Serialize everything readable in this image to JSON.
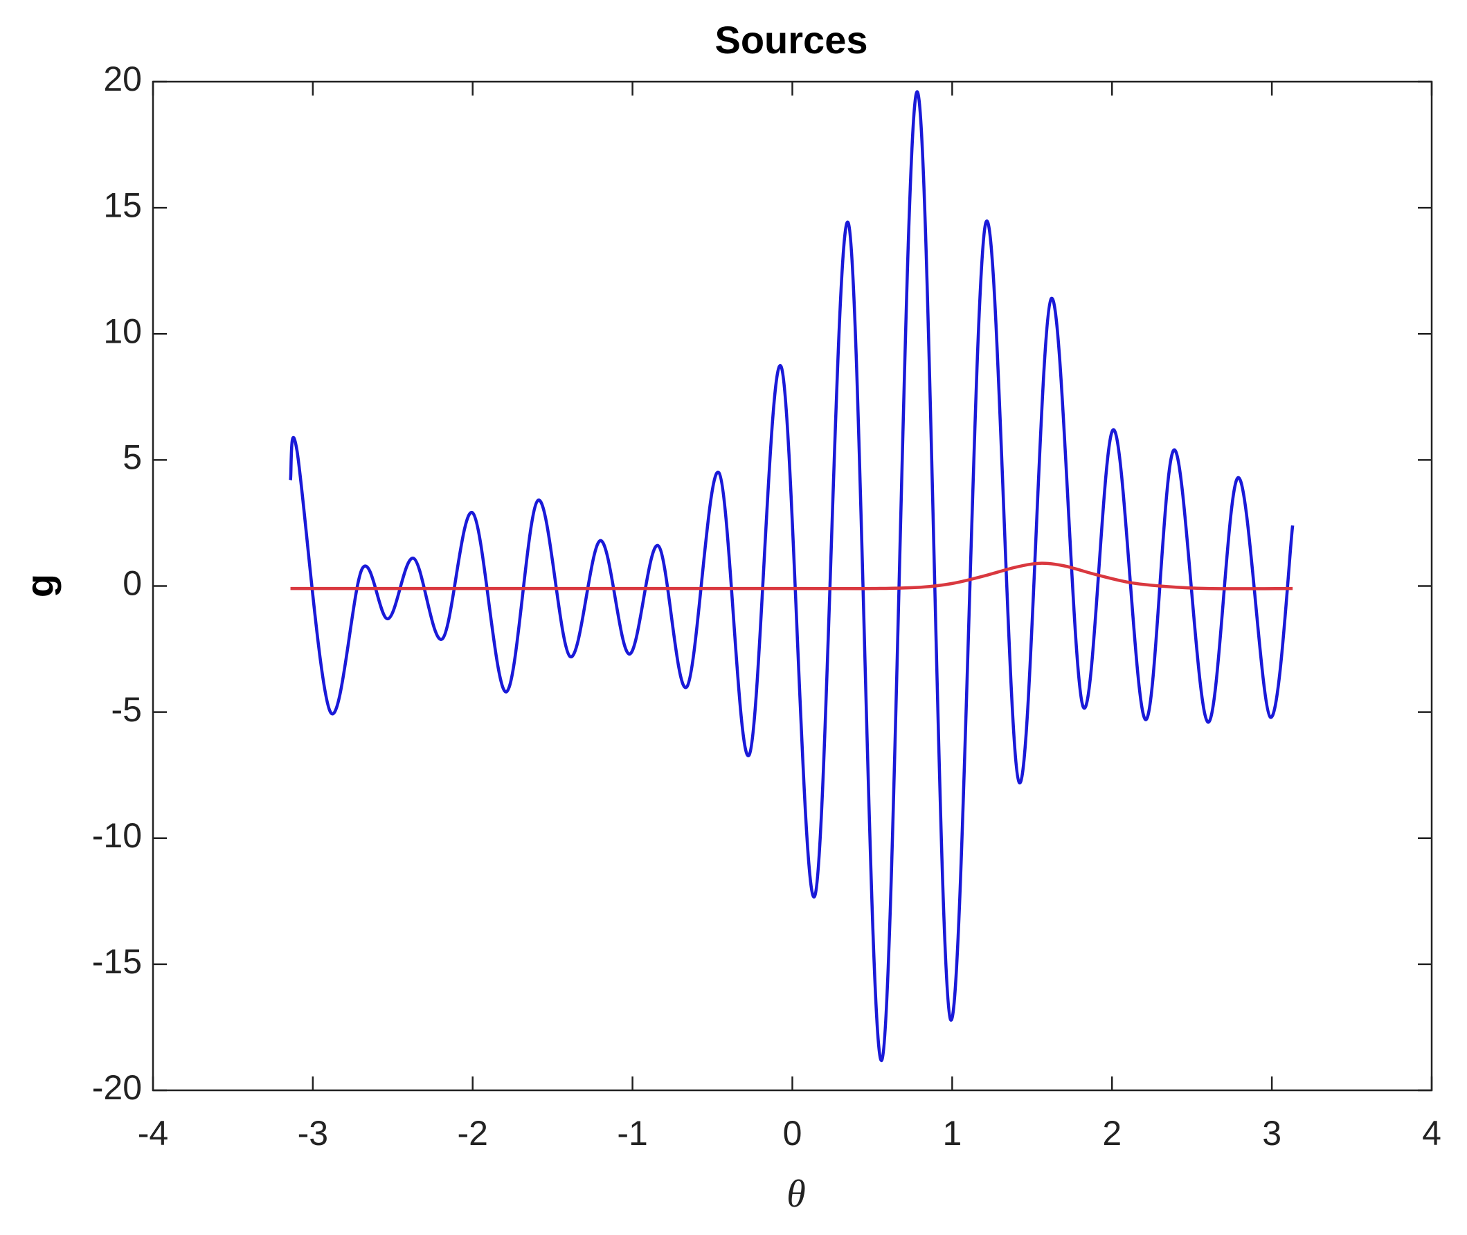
{
  "chart_data": {
    "type": "line",
    "title": "Sources",
    "x_label": "θ",
    "y_label": "g",
    "xlim": [
      -4,
      4
    ],
    "xticks": [
      -4,
      -3,
      -2,
      -1,
      0,
      1,
      2,
      3,
      4
    ],
    "ylim": [
      -20,
      20
    ],
    "yticks": [
      -20,
      -15,
      -10,
      -5,
      0,
      5,
      10,
      15,
      20
    ],
    "grid": false,
    "series": [
      {
        "color": "#1a1ad8",
        "x": [
          -3.14,
          -3.1,
          -2.89,
          -2.69,
          -2.53,
          -2.37,
          -2.19,
          -2.0,
          -1.79,
          -1.59,
          -1.39,
          -1.2,
          -1.02,
          -0.84,
          -0.66,
          -0.46,
          -0.27,
          -0.07,
          0.14,
          0.35,
          0.56,
          0.78,
          0.99,
          1.21,
          1.42,
          1.62,
          1.82,
          2.01,
          2.21,
          2.39,
          2.6,
          2.79,
          2.99,
          3.13
        ],
        "values": [
          4.2,
          5.4,
          -5.0,
          0.7,
          -1.3,
          1.1,
          -2.1,
          2.9,
          -4.2,
          3.4,
          -2.8,
          1.8,
          -2.7,
          1.6,
          -4.0,
          4.5,
          -6.7,
          8.7,
          -12.3,
          14.4,
          -18.8,
          19.6,
          -17.2,
          14.4,
          -7.8,
          11.4,
          -4.8,
          6.2,
          -5.3,
          5.4,
          -5.4,
          4.3,
          -5.2,
          2.4
        ]
      },
      {
        "color": "#d9383f",
        "x": [
          -3.14,
          -2,
          -1,
          0,
          0.5,
          0.8,
          1.0,
          1.2,
          1.4,
          1.55,
          1.7,
          1.9,
          2.1,
          2.3,
          2.6,
          3.13
        ],
        "values": [
          -0.1,
          -0.1,
          -0.1,
          -0.1,
          -0.1,
          -0.05,
          0.1,
          0.4,
          0.75,
          0.9,
          0.8,
          0.45,
          0.15,
          0,
          -0.1,
          -0.1
        ]
      }
    ]
  }
}
